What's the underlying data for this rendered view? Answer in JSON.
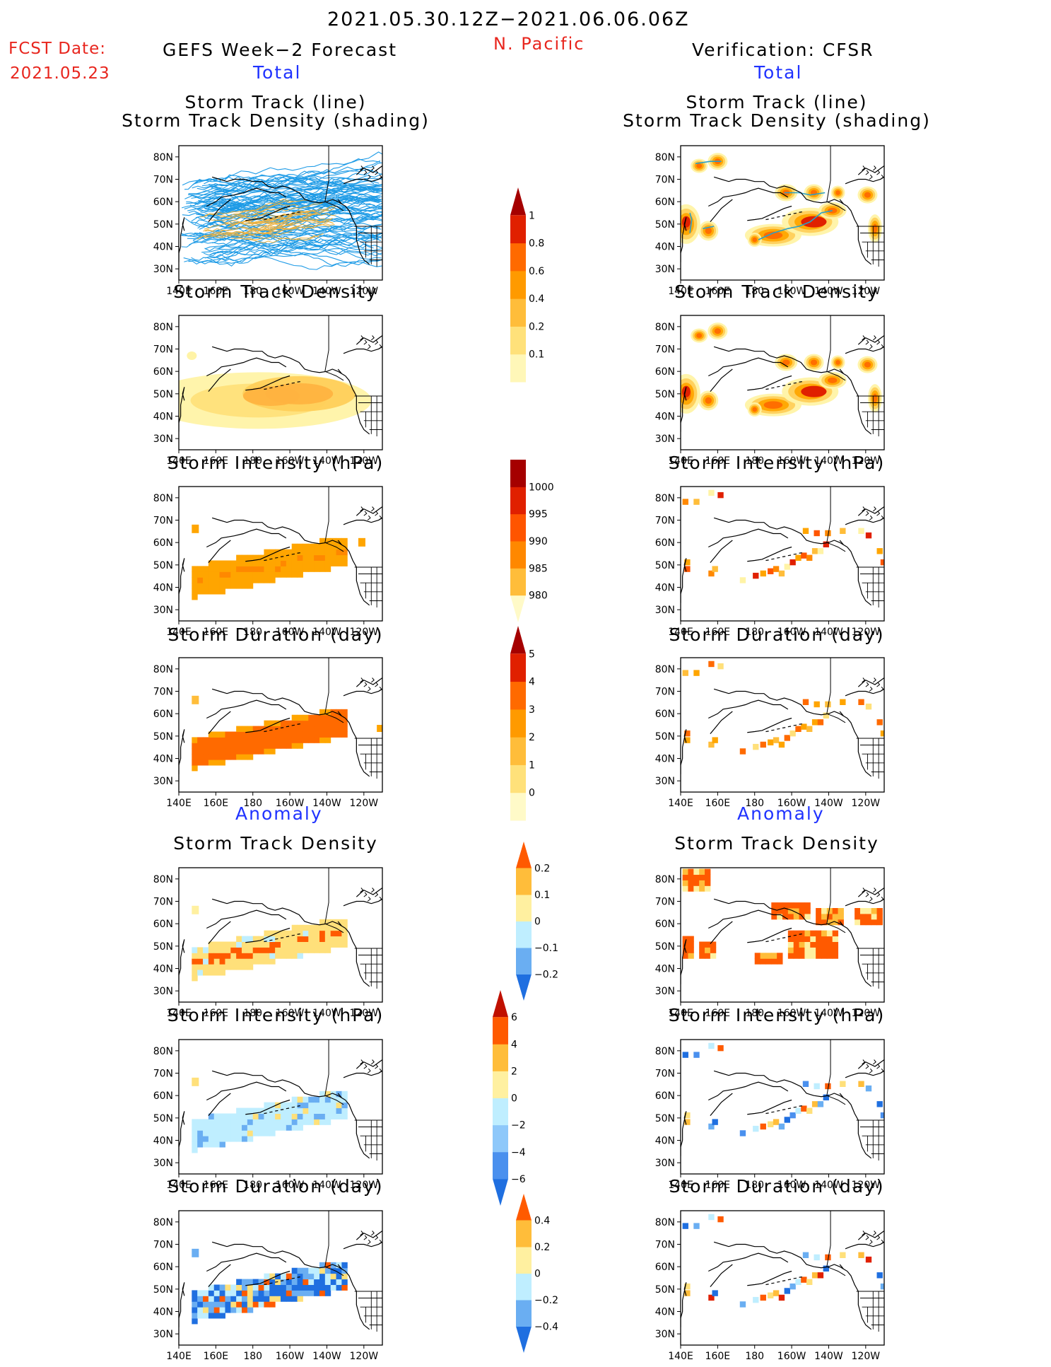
{
  "header": {
    "period": "2021.05.30.12Z−2021.06.06.06Z",
    "region": "N. Pacific",
    "fcst_label": "FCST Date:",
    "fcst_date": "2021.05.23",
    "left_title": "GEFS Week−2 Forecast",
    "right_title": "Verification: CFSR",
    "total_left": "Total",
    "total_right": "Total",
    "anomaly_left": "Anomaly",
    "anomaly_right": "Anomaly"
  },
  "panel_titles": {
    "track_line": "Storm Track (line)",
    "track_density_shading": "Storm Track Density (shading)",
    "track_density": "Storm Track Density",
    "intensity": "Storm Intensity (hPa)",
    "duration": "Storm Duration (day)"
  },
  "axes": {
    "x_ticks": [
      "140E",
      "160E",
      "180",
      "160W",
      "140W",
      "120W"
    ],
    "y_ticks": [
      "80N",
      "70N",
      "60N",
      "50N",
      "40N",
      "30N"
    ]
  },
  "colorbars": {
    "density": {
      "labels": [
        "1",
        "0.8",
        "0.6",
        "0.4",
        "0.2",
        "0.1"
      ],
      "colors": [
        "#fff7b8",
        "#ffe17a",
        "#ffbd3a",
        "#ff9a00",
        "#ff6a00",
        "#e02000",
        "#a50000"
      ]
    },
    "intensity": {
      "labels": [
        "1000",
        "995",
        "990",
        "985",
        "980"
      ],
      "colors": [
        "#fffac8",
        "#ffbd3a",
        "#ff8800",
        "#ff5500",
        "#e02000",
        "#a50000"
      ]
    },
    "duration": {
      "labels": [
        "5",
        "4",
        "3",
        "2",
        "1",
        "0"
      ],
      "colors": [
        "#fffac8",
        "#ffe17a",
        "#ffbd3a",
        "#ff9a00",
        "#ff6a00",
        "#e02000",
        "#a50000"
      ]
    },
    "anom_density": {
      "labels": [
        "0.2",
        "0.1",
        "0",
        "−0.1",
        "−0.2"
      ],
      "colors": [
        "#1f6fe0",
        "#6aaef2",
        "#bfeeff",
        "#fff0a0",
        "#ffbd3a",
        "#ff5a00"
      ]
    },
    "anom_intensity": {
      "labels": [
        "6",
        "4",
        "2",
        "0",
        "−2",
        "−4",
        "−6"
      ],
      "colors": [
        "#1f6fe0",
        "#4a90ee",
        "#8ec8fa",
        "#bfeeff",
        "#fff0a0",
        "#ffbd3a",
        "#ff5a00",
        "#c01000"
      ]
    },
    "anom_duration": {
      "labels": [
        "0.4",
        "0.2",
        "0",
        "−0.2",
        "−0.4"
      ],
      "colors": [
        "#1f6fe0",
        "#6aaef2",
        "#bfeeff",
        "#fff0a0",
        "#ffbd3a",
        "#ff5a00"
      ]
    }
  },
  "colors": {
    "track_line": "#1e9be6",
    "track_line_obs": "#2aa0c8",
    "coast": "#000000"
  }
}
